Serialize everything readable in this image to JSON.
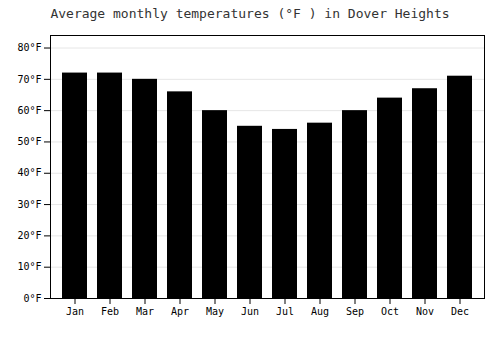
{
  "chart_data": {
    "type": "bar",
    "title": "Average monthly temperatures (°F ) in Dover Heights",
    "categories": [
      "Jan",
      "Feb",
      "Mar",
      "Apr",
      "May",
      "Jun",
      "Jul",
      "Aug",
      "Sep",
      "Oct",
      "Nov",
      "Dec"
    ],
    "values": [
      72,
      72,
      70,
      66,
      60,
      55,
      54,
      56,
      60,
      64,
      67,
      71
    ],
    "ylim": [
      0,
      84
    ],
    "yticks": [
      {
        "value": 0,
        "label": "0°F"
      },
      {
        "value": 10,
        "label": "10°F"
      },
      {
        "value": 20,
        "label": "20°F"
      },
      {
        "value": 30,
        "label": "30°F"
      },
      {
        "value": 40,
        "label": "40°F"
      },
      {
        "value": 50,
        "label": "50°F"
      },
      {
        "value": 60,
        "label": "60°F"
      },
      {
        "value": 70,
        "label": "70°F"
      },
      {
        "value": 80,
        "label": "80°F"
      }
    ],
    "grid": true
  }
}
